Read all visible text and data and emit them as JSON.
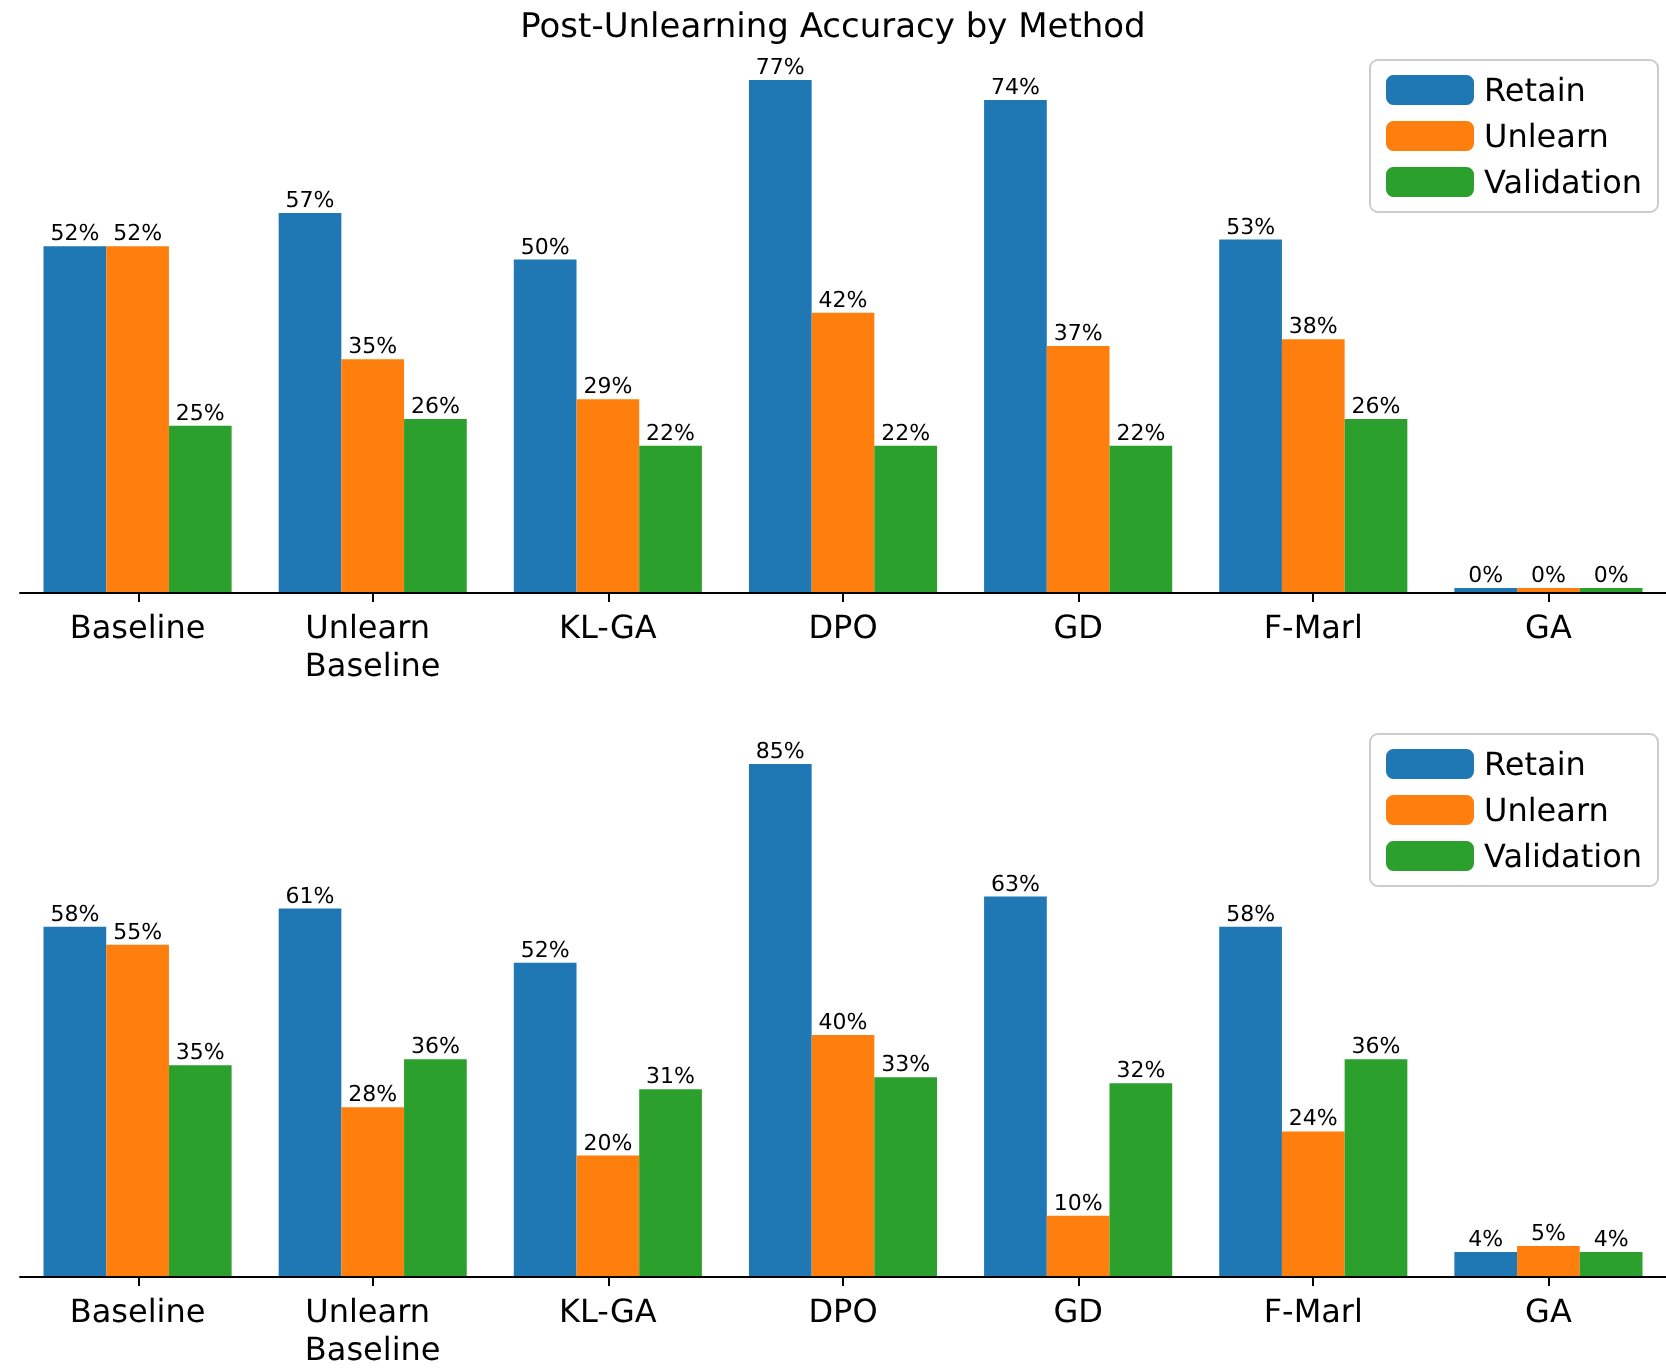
{
  "chart_data": [
    {
      "type": "bar",
      "title": "Post-Unlearning Accuracy by Method",
      "categories": [
        "Baseline",
        "Unlearn Baseline",
        "KL-GA",
        "DPO",
        "GD",
        "F-Marl",
        "GA"
      ],
      "legend": "top right",
      "series": [
        {
          "name": "Retain",
          "color": "#1f77b4",
          "values": [
            52,
            57,
            50,
            77,
            74,
            53,
            0
          ],
          "value_labels": [
            "52%",
            "57%",
            "50%",
            "77%",
            "74%",
            "53%",
            "0%"
          ]
        },
        {
          "name": "Unlearn",
          "color": "#ff7f0e",
          "values": [
            52,
            35,
            29,
            42,
            37,
            38,
            0
          ],
          "value_labels": [
            "52%",
            "35%",
            "29%",
            "42%",
            "37%",
            "38%",
            "0%"
          ]
        },
        {
          "name": "Validation",
          "color": "#2ca02c",
          "values": [
            25,
            26,
            22,
            22,
            22,
            26,
            0
          ],
          "value_labels": [
            "25%",
            "26%",
            "22%",
            "22%",
            "22%",
            "26%",
            "0%"
          ]
        }
      ]
    },
    {
      "type": "bar",
      "categories": [
        "Baseline",
        "Unlearn Baseline",
        "KL-GA",
        "DPO",
        "GD",
        "F-Marl",
        "GA"
      ],
      "legend": "top right",
      "series": [
        {
          "name": "Retain",
          "color": "#1f77b4",
          "values": [
            58,
            61,
            52,
            85,
            63,
            58,
            4
          ],
          "value_labels": [
            "58%",
            "61%",
            "52%",
            "85%",
            "63%",
            "58%",
            "4%"
          ]
        },
        {
          "name": "Unlearn",
          "color": "#ff7f0e",
          "values": [
            55,
            28,
            20,
            40,
            10,
            24,
            5
          ],
          "value_labels": [
            "55%",
            "28%",
            "20%",
            "40%",
            "10%",
            "24%",
            "5%"
          ]
        },
        {
          "name": "Validation",
          "color": "#2ca02c",
          "values": [
            35,
            36,
            31,
            33,
            32,
            36,
            4
          ],
          "value_labels": [
            "35%",
            "36%",
            "31%",
            "33%",
            "32%",
            "36%",
            "4%"
          ]
        }
      ]
    }
  ]
}
